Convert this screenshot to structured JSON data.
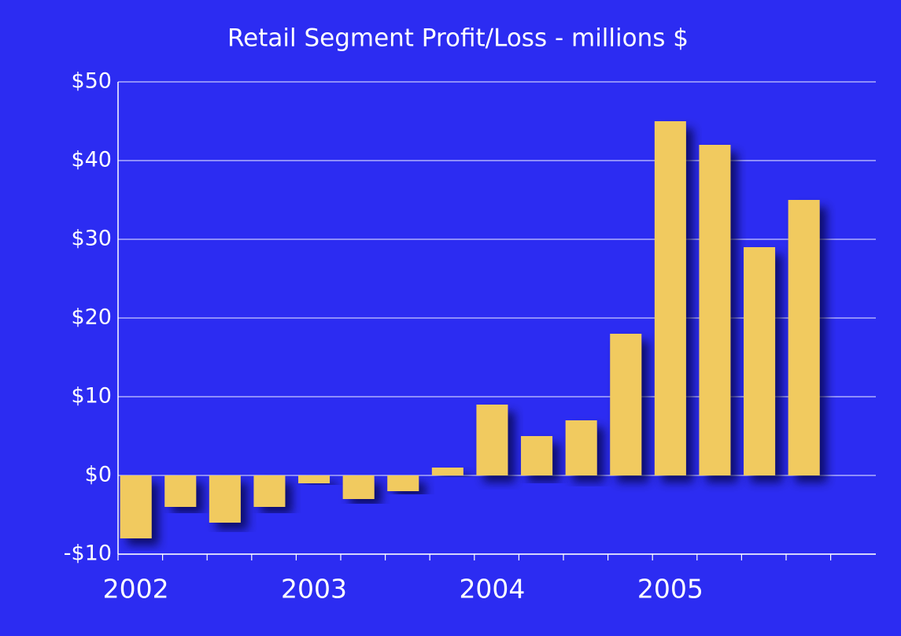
{
  "chart_data": {
    "type": "bar",
    "title": "Retail Segment Profit/Loss - millions $",
    "categories": [
      "2002",
      null,
      null,
      null,
      "2003",
      null,
      null,
      null,
      "2004",
      null,
      null,
      null,
      "2005",
      null,
      null,
      null
    ],
    "values": [
      -8,
      -4,
      -6,
      -4,
      -1,
      -3,
      -2,
      1,
      9,
      5,
      7,
      18,
      45,
      42,
      29,
      35
    ],
    "color": "#f1ca5e",
    "ylim": [
      -10,
      50
    ],
    "yticks": [
      {
        "value": -10,
        "label": "-$10"
      },
      {
        "value": 0,
        "label": "$0"
      },
      {
        "value": 10,
        "label": "$10"
      },
      {
        "value": 20,
        "label": "$20"
      },
      {
        "value": 30,
        "label": "$30"
      },
      {
        "value": 40,
        "label": "$40"
      },
      {
        "value": 50,
        "label": "$50"
      }
    ],
    "grid": true
  }
}
